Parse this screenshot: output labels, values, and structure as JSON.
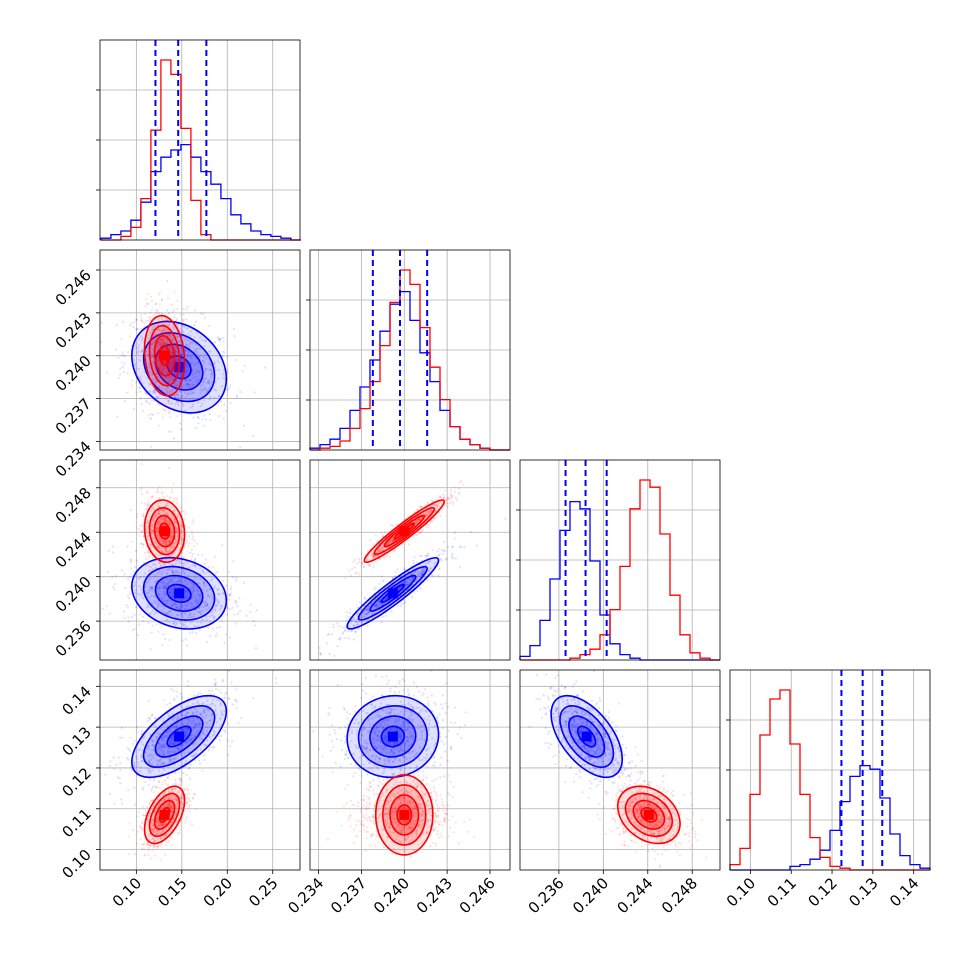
{
  "chart_data": {
    "type": "corner",
    "colors": {
      "run_1": "#0000ff",
      "run_2": "#ff0000"
    },
    "grid": true,
    "parameters": [
      {
        "range": [
          0.06,
          0.28
        ],
        "tick_values": [
          0.1,
          0.15,
          0.2,
          0.25
        ],
        "tick_labels": [
          "0.10",
          "0.15",
          "0.20",
          "0.25"
        ],
        "quantile_lines": [
          0.121,
          0.146,
          0.177
        ],
        "hist_bins": [
          0.061,
          0.072,
          0.083,
          0.094,
          0.105,
          0.116,
          0.127,
          0.138,
          0.149,
          0.16,
          0.171,
          0.182,
          0.193,
          0.204,
          0.215,
          0.226,
          0.237,
          0.248,
          0.259,
          0.27,
          0.281
        ],
        "hist_counts": {
          "run_1": [
            0.01,
            0.03,
            0.05,
            0.11,
            0.21,
            0.38,
            0.46,
            0.5,
            0.53,
            0.46,
            0.38,
            0.31,
            0.23,
            0.14,
            0.09,
            0.05,
            0.03,
            0.02,
            0.01,
            0.0
          ],
          "run_2": [
            0.0,
            0.0,
            0.02,
            0.07,
            0.23,
            0.61,
            1.0,
            0.92,
            0.62,
            0.22,
            0.03,
            0.0,
            0.0,
            0.0,
            0.0,
            0.0,
            0.0,
            0.0,
            0.0,
            0.0
          ]
        }
      },
      {
        "range": [
          0.2334,
          0.2474
        ],
        "tick_values": [
          0.234,
          0.237,
          0.24,
          0.243,
          0.246
        ],
        "tick_labels": [
          "0.234",
          "0.237",
          "0.240",
          "0.243",
          "0.246"
        ],
        "quantile_lines": [
          0.2378,
          0.2397,
          0.2416
        ],
        "hist_bins": [
          0.2334,
          0.2341,
          0.2348,
          0.2355,
          0.2362,
          0.2369,
          0.2376,
          0.2383,
          0.239,
          0.2397,
          0.2404,
          0.2411,
          0.2418,
          0.2425,
          0.2432,
          0.2439,
          0.2446,
          0.2453,
          0.246,
          0.2467,
          0.2474
        ],
        "hist_counts": {
          "run_1": [
            0.01,
            0.03,
            0.06,
            0.12,
            0.22,
            0.35,
            0.5,
            0.66,
            0.81,
            0.88,
            0.72,
            0.54,
            0.38,
            0.22,
            0.13,
            0.06,
            0.03,
            0.01,
            0.0,
            0.0
          ],
          "run_2": [
            0.0,
            0.01,
            0.02,
            0.05,
            0.12,
            0.23,
            0.38,
            0.58,
            0.82,
            1.0,
            0.92,
            0.68,
            0.46,
            0.28,
            0.13,
            0.06,
            0.03,
            0.01,
            0.0,
            0.0
          ]
        }
      },
      {
        "range": [
          0.2325,
          0.2505
        ],
        "tick_values": [
          0.236,
          0.24,
          0.244,
          0.248
        ],
        "tick_labels": [
          "0.236",
          "0.240",
          "0.244",
          "0.248"
        ],
        "quantile_lines": [
          0.2366,
          0.2384,
          0.2403
        ],
        "hist_bins": [
          0.2325,
          0.2334,
          0.2343,
          0.2352,
          0.2361,
          0.237,
          0.2379,
          0.2388,
          0.2397,
          0.2406,
          0.2415,
          0.2424,
          0.2433,
          0.2442,
          0.2451,
          0.246,
          0.2469,
          0.2478,
          0.2487,
          0.2496,
          0.2505
        ],
        "hist_counts": {
          "run_1": [
            0.02,
            0.08,
            0.22,
            0.45,
            0.72,
            0.88,
            0.84,
            0.55,
            0.25,
            0.09,
            0.03,
            0.01,
            0.0,
            0.0,
            0.0,
            0.0,
            0.0,
            0.0,
            0.0,
            0.0
          ],
          "run_2": [
            0.0,
            0.0,
            0.0,
            0.0,
            0.0,
            0.01,
            0.03,
            0.06,
            0.14,
            0.28,
            0.52,
            0.84,
            1.0,
            0.96,
            0.7,
            0.36,
            0.14,
            0.04,
            0.01,
            0.0
          ]
        }
      },
      {
        "range": [
          0.095,
          0.144
        ],
        "tick_values": [
          0.1,
          0.11,
          0.12,
          0.13,
          0.14
        ],
        "tick_labels": [
          "0.10",
          "0.11",
          "0.12",
          "0.13",
          "0.14"
        ],
        "quantile_lines": [
          0.1223,
          0.1275,
          0.1323
        ],
        "hist_bins": [
          0.095,
          0.09745,
          0.0999,
          0.10235,
          0.1048,
          0.10725,
          0.1097,
          0.11215,
          0.1146,
          0.11705,
          0.1195,
          0.12195,
          0.1244,
          0.12685,
          0.1293,
          0.13175,
          0.1342,
          0.13665,
          0.1391,
          0.14155,
          0.144
        ],
        "hist_counts": {
          "run_1": [
            0.0,
            0.0,
            0.0,
            0.0,
            0.0,
            0.0,
            0.02,
            0.03,
            0.06,
            0.11,
            0.22,
            0.38,
            0.52,
            0.58,
            0.56,
            0.4,
            0.2,
            0.08,
            0.03,
            0.01
          ],
          "run_2": [
            0.03,
            0.12,
            0.42,
            0.75,
            0.95,
            1.0,
            0.7,
            0.42,
            0.18,
            0.07,
            0.02,
            0.01,
            0.0,
            0.0,
            0.0,
            0.0,
            0.0,
            0.0,
            0.0,
            0.0
          ]
        }
      }
    ],
    "gaussians_2d": {
      "run_1": {
        "mean": [
          0.147,
          0.2392,
          0.2385,
          0.1277
        ],
        "sd": [
          0.026,
          0.0016,
          0.0016,
          0.005
        ]
      },
      "run_2": {
        "mean": [
          0.131,
          0.24,
          0.2441,
          0.1085
        ],
        "sd": [
          0.011,
          0.0014,
          0.0014,
          0.0035
        ]
      }
    },
    "correlations_2d": {
      "run_1": {
        "1-0": -0.25,
        "2-0": -0.2,
        "2-1": 0.93,
        "3-0": 0.62,
        "3-1": 0.05,
        "3-2": -0.55
      },
      "run_2": {
        "1-0": -0.15,
        "2-0": -0.1,
        "2-1": 0.95,
        "3-0": 0.5,
        "3-1": 0.0,
        "3-2": -0.3
      }
    },
    "contour_levels_sigma": [
      0.5,
      1.0,
      1.5,
      2.0
    ]
  }
}
